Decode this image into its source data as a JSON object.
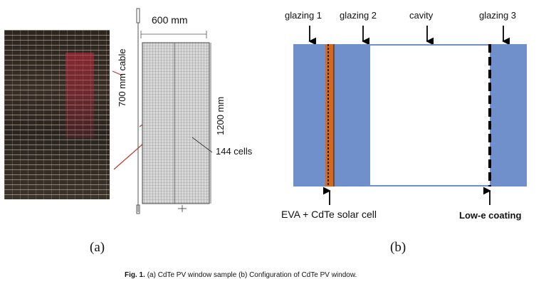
{
  "panel_a": {
    "label": "(a)",
    "dim_width": "600 mm",
    "dim_height": "1200 mm",
    "cable_label": "700 mm cable",
    "cells_label": "144 cells"
  },
  "panel_b": {
    "label": "(b)",
    "top_labels": [
      "glazing 1",
      "glazing 2",
      "cavity",
      "glazing 3"
    ],
    "bottom_left_label": "EVA + CdTe solar cell",
    "bottom_right_label": "Low-e coating",
    "colors": {
      "glazing": "#7090cc",
      "eva": "#d2691e",
      "cavity": "#ffffff"
    }
  },
  "caption": {
    "fig": "Fig. 1.",
    "text": "(a) CdTe PV window sample (b) Configuration of CdTe PV window."
  }
}
